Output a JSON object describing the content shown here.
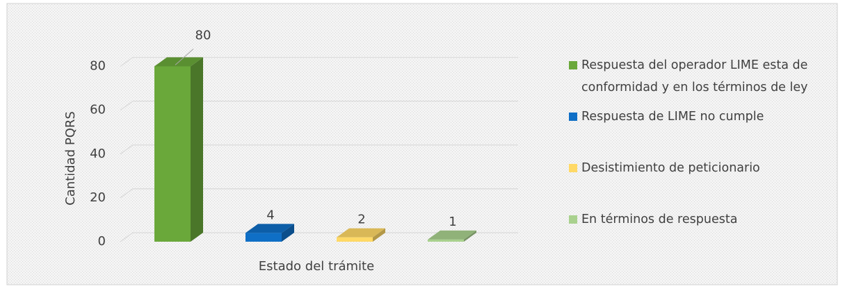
{
  "chart_data": {
    "type": "bar3d",
    "categories": [
      "Respuesta del operador LIME esta de conformidad y en los términos de ley",
      "Respuesta de LIME no cumple",
      "Desistimiento de peticionario",
      "En términos de respuesta"
    ],
    "values": [
      80,
      4,
      2,
      1
    ],
    "colors": [
      "#6aa83a",
      "#0f6fc6",
      "#ffd966",
      "#a9d18e"
    ],
    "x_label": "Estado del trámite",
    "y_label": "Cantidad PQRS",
    "ylim": [
      0,
      90
    ],
    "yticks": [
      0,
      20,
      40,
      60,
      80
    ],
    "grid": true,
    "legend": "right"
  }
}
